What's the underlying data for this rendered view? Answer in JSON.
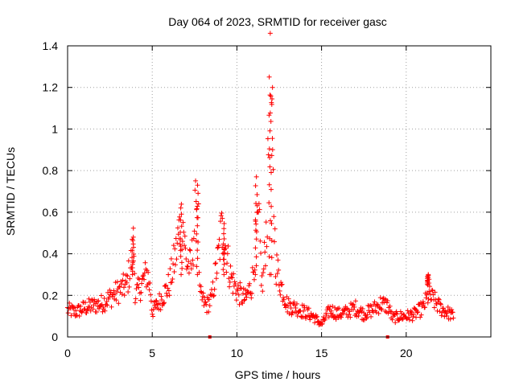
{
  "chart_data": {
    "type": "scatter",
    "title": "Day 064 of 2023, SRMTID for receiver gasc",
    "xlabel": "GPS time / hours",
    "ylabel": "SRMTID / TECUs",
    "xlim": [
      0,
      25
    ],
    "ylim": [
      0,
      1.4
    ],
    "grid": true,
    "marker": "+",
    "x_ticks": [
      0,
      5,
      10,
      15,
      20
    ],
    "x_tick_labels": [
      "0",
      "5",
      "10",
      "15",
      "20"
    ],
    "y_ticks": [
      0,
      0.2,
      0.4,
      0.6,
      0.8,
      1.0,
      1.2,
      1.4
    ],
    "y_tick_labels": [
      "0",
      "0.2",
      "0.4",
      "0.6",
      "0.8",
      "1",
      "1.2",
      "1.4"
    ],
    "colors": {
      "series": "#ff0000",
      "grid": "#a0a0a0",
      "axes": "#000000"
    },
    "data_gap_markers_x": [
      8.4,
      18.9
    ],
    "series": [
      {
        "name": "SRMTID",
        "profile": [
          [
            0.0,
            0.13
          ],
          [
            0.5,
            0.12
          ],
          [
            1.0,
            0.14
          ],
          [
            1.5,
            0.15
          ],
          [
            2.0,
            0.16
          ],
          [
            2.5,
            0.19
          ],
          [
            3.0,
            0.22
          ],
          [
            3.5,
            0.25
          ],
          [
            3.8,
            0.38
          ],
          [
            3.9,
            0.46
          ],
          [
            4.0,
            0.2
          ],
          [
            4.3,
            0.24
          ],
          [
            4.7,
            0.31
          ],
          [
            4.9,
            0.22
          ],
          [
            5.0,
            0.12
          ],
          [
            5.5,
            0.18
          ],
          [
            6.0,
            0.25
          ],
          [
            6.4,
            0.4
          ],
          [
            6.6,
            0.52
          ],
          [
            6.8,
            0.58
          ],
          [
            7.0,
            0.36
          ],
          [
            7.3,
            0.33
          ],
          [
            7.5,
            0.55
          ],
          [
            7.7,
            0.7
          ],
          [
            7.8,
            0.2
          ],
          [
            8.2,
            0.15
          ],
          [
            8.5,
            0.18
          ],
          [
            8.9,
            0.38
          ],
          [
            9.1,
            0.52
          ],
          [
            9.3,
            0.45
          ],
          [
            9.6,
            0.3
          ],
          [
            10.0,
            0.22
          ],
          [
            10.5,
            0.18
          ],
          [
            10.9,
            0.26
          ],
          [
            11.1,
            0.45
          ],
          [
            11.3,
            0.55
          ],
          [
            11.5,
            0.22
          ],
          [
            11.8,
            0.6
          ],
          [
            11.9,
            1.1
          ],
          [
            12.0,
            1.22
          ],
          [
            12.1,
            0.8
          ],
          [
            12.3,
            0.35
          ],
          [
            12.6,
            0.25
          ],
          [
            13.0,
            0.15
          ],
          [
            13.5,
            0.14
          ],
          [
            14.0,
            0.12
          ],
          [
            14.5,
            0.1
          ],
          [
            15.0,
            0.06
          ],
          [
            15.5,
            0.13
          ],
          [
            16.0,
            0.11
          ],
          [
            16.5,
            0.12
          ],
          [
            17.0,
            0.14
          ],
          [
            17.5,
            0.11
          ],
          [
            18.0,
            0.13
          ],
          [
            18.5,
            0.16
          ],
          [
            18.9,
            0.15
          ],
          [
            19.2,
            0.09
          ],
          [
            19.6,
            0.1
          ],
          [
            20.0,
            0.1
          ],
          [
            20.5,
            0.11
          ],
          [
            21.0,
            0.14
          ],
          [
            21.3,
            0.2
          ],
          [
            21.6,
            0.18
          ],
          [
            22.0,
            0.14
          ],
          [
            22.4,
            0.12
          ],
          [
            22.8,
            0.1
          ]
        ],
        "peaks": [
          [
            3.85,
            0.48
          ],
          [
            6.7,
            0.62
          ],
          [
            7.65,
            0.73
          ],
          [
            9.2,
            0.57
          ],
          [
            11.15,
            0.77
          ],
          [
            11.95,
            1.25
          ],
          [
            12.05,
            1.2
          ],
          [
            21.3,
            0.25
          ]
        ]
      }
    ]
  }
}
